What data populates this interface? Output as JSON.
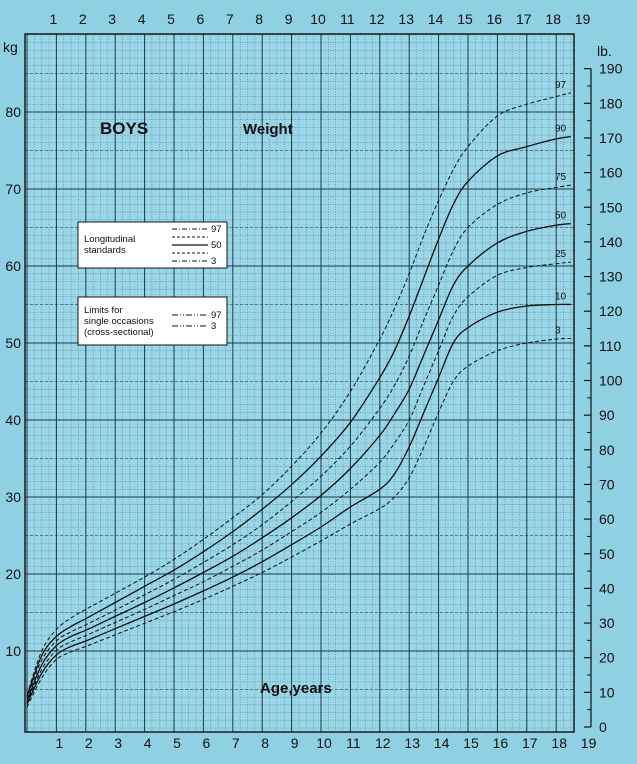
{
  "chart_data": {
    "type": "line",
    "title": "BOYS",
    "subtitle": "Weight",
    "xlabel": "Age,years",
    "ylabel_left": "kg",
    "ylabel_right": "lb.",
    "xlim": [
      0,
      19
    ],
    "ylim": [
      0,
      88
    ],
    "ylim_lb": [
      0,
      190
    ],
    "x_ticks": [
      1,
      2,
      3,
      4,
      5,
      6,
      7,
      8,
      9,
      10,
      11,
      12,
      13,
      14,
      15,
      16,
      17,
      18,
      19
    ],
    "y_ticks": [
      10,
      20,
      30,
      40,
      50,
      60,
      70,
      80
    ],
    "lb_ticks": [
      0,
      10,
      20,
      30,
      40,
      50,
      60,
      70,
      80,
      90,
      100,
      110,
      120,
      130,
      140,
      150,
      160,
      170,
      180,
      190
    ],
    "grid": true,
    "x": [
      0,
      0.5,
      1,
      1.5,
      2,
      3,
      4,
      5,
      6,
      7,
      8,
      9,
      10,
      11,
      12,
      12.5,
      13,
      13.5,
      14,
      14.5,
      15,
      16,
      17,
      18,
      18.5
    ],
    "series": [
      {
        "name": "97",
        "style": "dashed",
        "values": [
          4.3,
          10.0,
          12.8,
          14.3,
          15.4,
          17.5,
          19.6,
          21.9,
          24.5,
          27.3,
          30.3,
          34.0,
          38.3,
          43.7,
          50.5,
          54.5,
          59.0,
          64.0,
          68.5,
          72.5,
          75.5,
          79.5,
          81.0,
          82.0,
          82.5
        ]
      },
      {
        "name": "90",
        "style": "solid",
        "values": [
          4.1,
          9.4,
          11.9,
          13.2,
          14.2,
          16.3,
          18.4,
          20.5,
          22.9,
          25.5,
          28.4,
          31.6,
          35.3,
          39.7,
          45.5,
          49.0,
          53.5,
          58.5,
          63.5,
          68.0,
          71.0,
          74.3,
          75.5,
          76.5,
          76.8
        ]
      },
      {
        "name": "75",
        "style": "dashed",
        "values": [
          3.8,
          8.8,
          11.3,
          12.5,
          13.4,
          15.3,
          17.3,
          19.3,
          21.5,
          23.8,
          26.4,
          29.4,
          32.7,
          36.6,
          41.5,
          44.5,
          48.3,
          53.0,
          57.5,
          62.0,
          65.0,
          68.0,
          69.5,
          70.2,
          70.5
        ]
      },
      {
        "name": "50",
        "style": "solid",
        "values": [
          3.5,
          8.2,
          10.7,
          11.9,
          12.7,
          14.5,
          16.3,
          18.2,
          20.2,
          22.3,
          24.7,
          27.3,
          30.2,
          33.7,
          38.0,
          40.8,
          44.0,
          48.5,
          53.0,
          57.5,
          60.0,
          63.0,
          64.5,
          65.3,
          65.5
        ]
      },
      {
        "name": "25",
        "style": "dashed",
        "values": [
          3.3,
          7.6,
          10.1,
          11.2,
          12.0,
          13.7,
          15.4,
          17.2,
          19.0,
          21.0,
          23.1,
          25.5,
          28.0,
          31.0,
          34.5,
          37.0,
          40.0,
          44.5,
          49.0,
          53.5,
          56.0,
          58.8,
          59.8,
          60.3,
          60.5
        ]
      },
      {
        "name": "10",
        "style": "solid",
        "values": [
          3.1,
          7.1,
          9.5,
          10.6,
          11.3,
          12.9,
          14.5,
          16.1,
          17.8,
          19.6,
          21.6,
          23.8,
          26.1,
          28.7,
          31.0,
          33.0,
          36.5,
          41.0,
          45.5,
          50.0,
          52.0,
          54.0,
          54.8,
          55.0,
          55.0
        ]
      },
      {
        "name": "3",
        "style": "dashed",
        "values": [
          2.7,
          6.5,
          8.9,
          9.9,
          10.6,
          12.1,
          13.6,
          15.1,
          16.7,
          18.4,
          20.2,
          22.2,
          24.3,
          26.5,
          28.5,
          30.0,
          32.5,
          36.5,
          41.0,
          45.0,
          47.0,
          49.0,
          50.0,
          50.5,
          50.6
        ]
      }
    ],
    "legend": {
      "longitudinal": {
        "label": [
          "Longitudinal",
          "standards"
        ],
        "entries": [
          "97",
          "50",
          "3"
        ]
      },
      "cross_sectional": {
        "label": [
          "Limits for",
          "single occasions",
          "(cross-sectional)"
        ],
        "entries": [
          "97",
          "3"
        ]
      }
    },
    "colors": {
      "background": "#8fd0e3",
      "plot_background": "#9ad6e7",
      "grid": "#1a3a45",
      "line": "#111111"
    }
  }
}
